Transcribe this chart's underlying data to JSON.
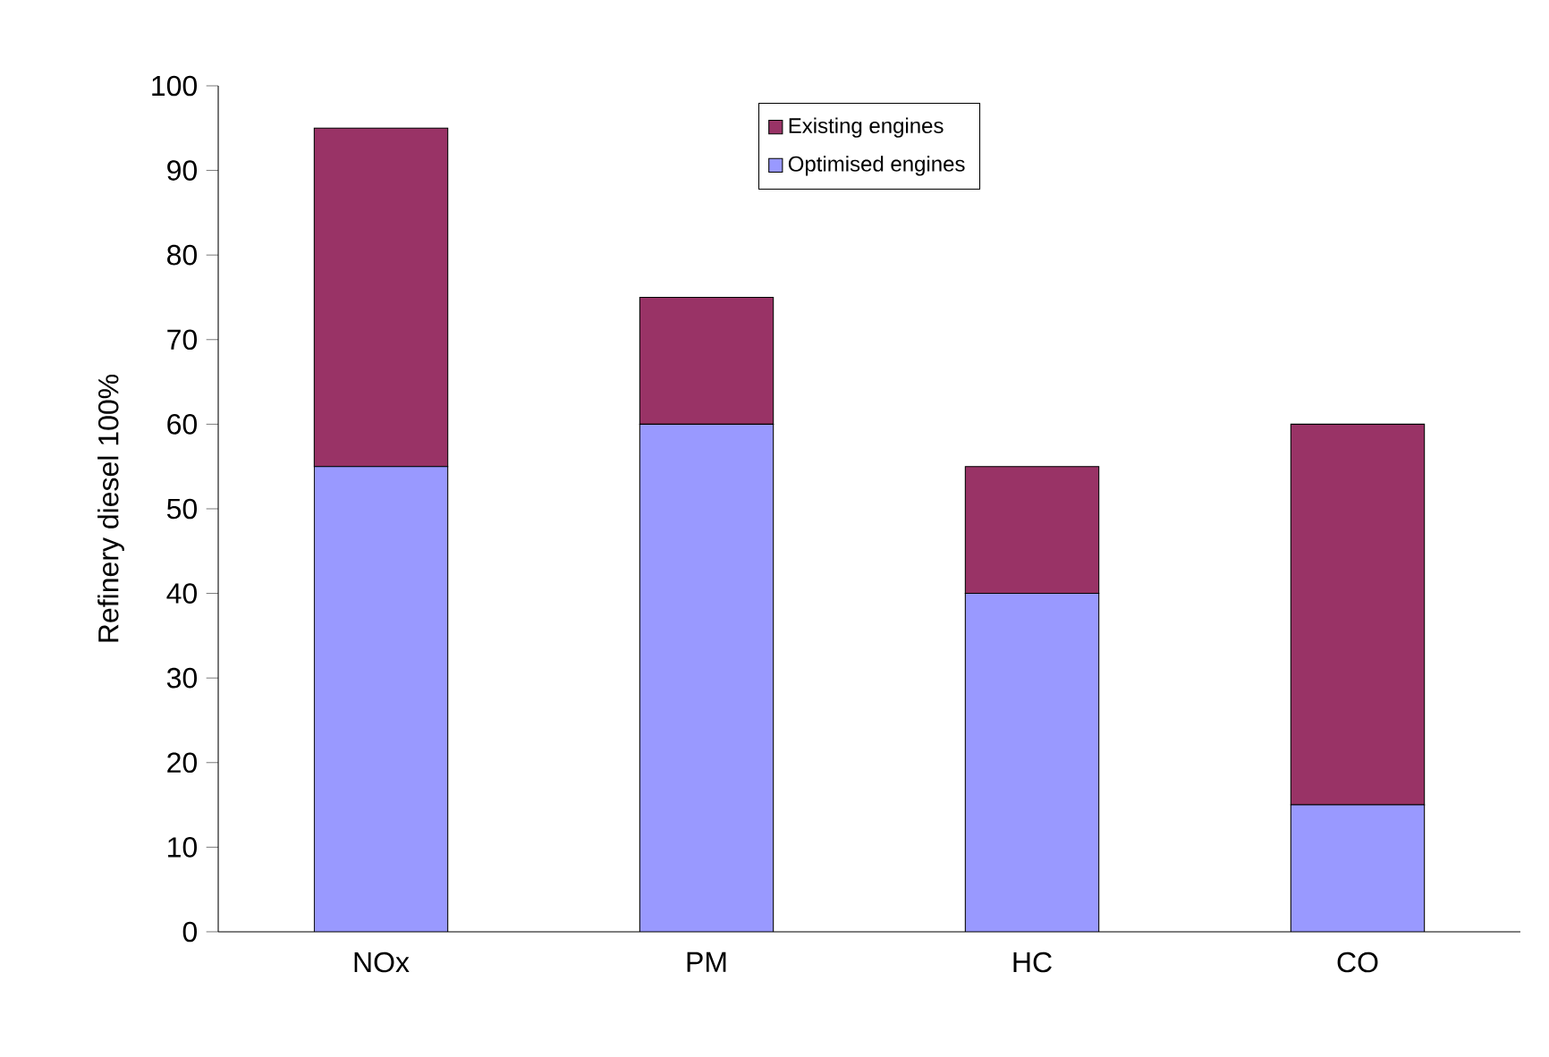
{
  "chart_data": {
    "type": "bar",
    "stacked": true,
    "ylabel": "Refinery diesel 100%",
    "categories": [
      "NOx",
      "PM",
      "HC",
      "CO"
    ],
    "series": [
      {
        "name": "Optimised engines",
        "color": "#9999ff",
        "values": [
          55,
          60,
          40,
          15
        ]
      },
      {
        "name": "Existing engines",
        "color": "#993366",
        "values": [
          40,
          15,
          15,
          45
        ]
      }
    ],
    "ylim": [
      0,
      100
    ],
    "yticks": [
      0,
      10,
      20,
      30,
      40,
      50,
      60,
      70,
      80,
      90,
      100
    ],
    "grid": false,
    "legend": "top"
  }
}
